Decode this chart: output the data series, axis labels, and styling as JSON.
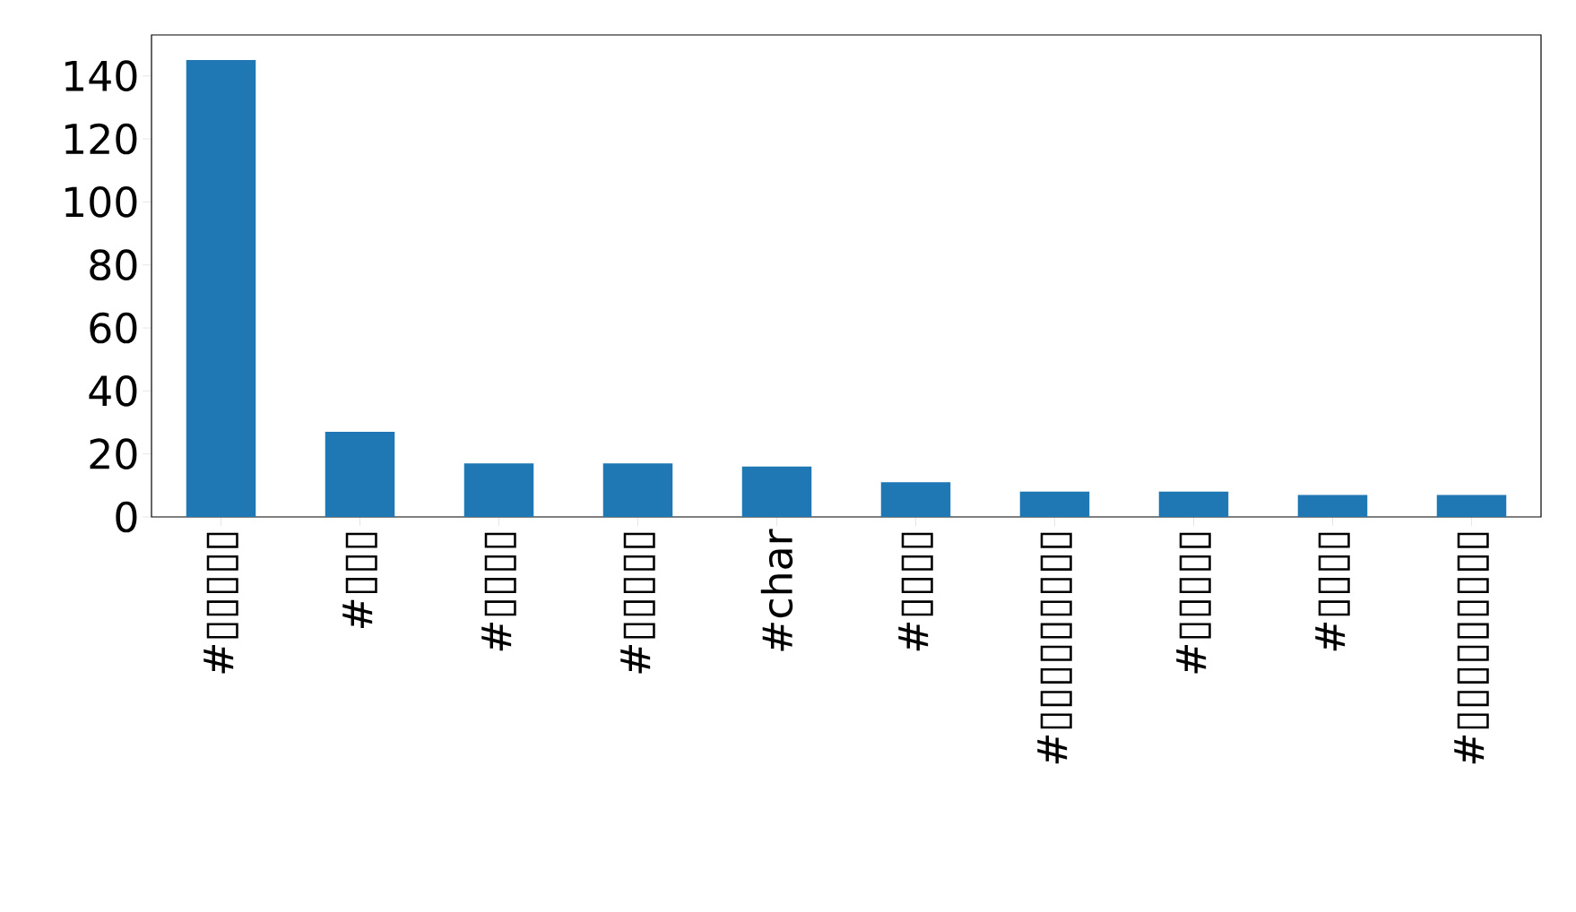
{
  "chart_data": {
    "type": "bar",
    "categories": [
      "#▯▯▯▯▯",
      "#▯▯▯",
      "#▯▯▯▯",
      "#▯▯▯▯▯",
      "#char",
      "#▯▯▯▯",
      "#▯▯▯▯▯▯▯▯▯",
      "#▯▯▯▯▯",
      "#▯▯▯▯",
      "#▯▯▯▯▯▯▯▯▯"
    ],
    "values": [
      145,
      27,
      17,
      17,
      16,
      11,
      8,
      8,
      7,
      7
    ],
    "color": "#1f77b4",
    "ylim": [
      0,
      153
    ],
    "yticks": [
      0,
      20,
      40,
      60,
      80,
      100,
      120,
      140
    ]
  }
}
